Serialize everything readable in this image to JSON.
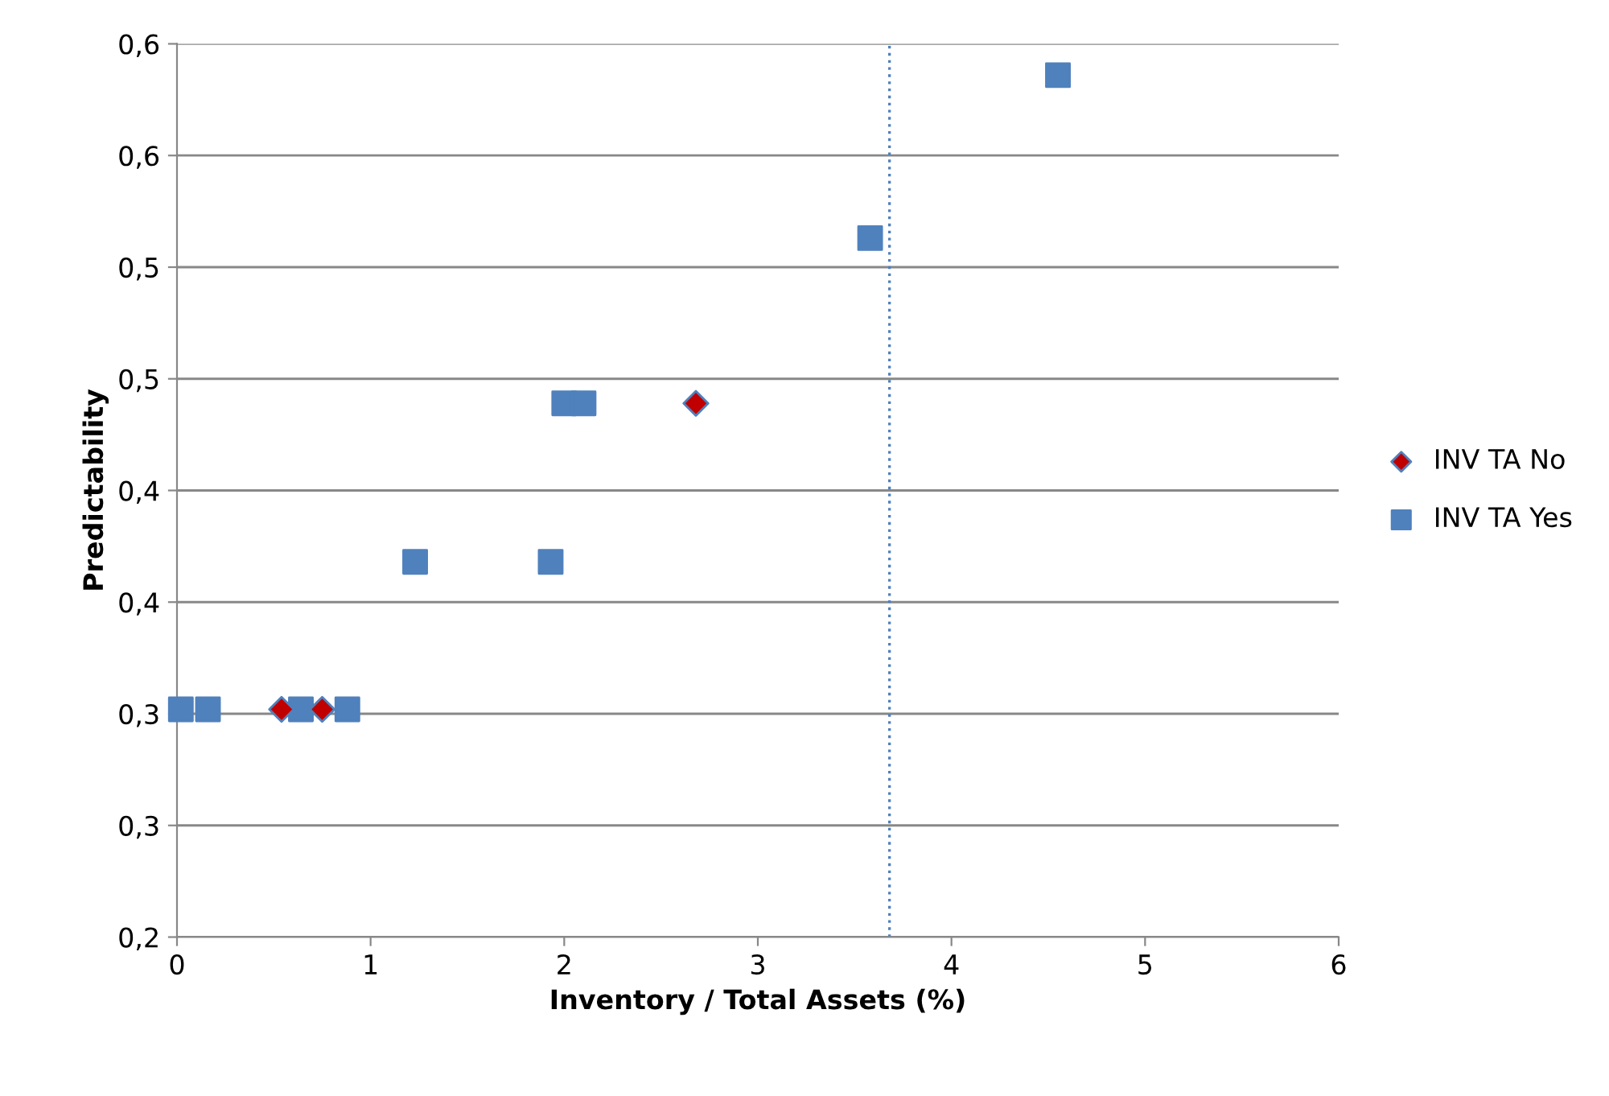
{
  "chart_data": {
    "type": "scatter",
    "xlabel": "Inventory / Total Assets (%)",
    "ylabel": "Predictability",
    "xlim": [
      0,
      6
    ],
    "xticks": [
      0,
      1,
      2,
      3,
      4,
      5,
      6
    ],
    "ylim": [
      0.2,
      0.6
    ],
    "yticks": [
      {
        "value": 0.2,
        "label": "0,2"
      },
      {
        "value": 0.25,
        "label": "0,3"
      },
      {
        "value": 0.3,
        "label": "0,3"
      },
      {
        "value": 0.35,
        "label": "0,4"
      },
      {
        "value": 0.4,
        "label": "0,4"
      },
      {
        "value": 0.45,
        "label": "0,5"
      },
      {
        "value": 0.5,
        "label": "0,5"
      },
      {
        "value": 0.55,
        "label": "0,6"
      },
      {
        "value": 0.6,
        "label": "0,6"
      }
    ],
    "grid": "y",
    "legend": "right",
    "series": [
      {
        "name": "INV TA No",
        "color": "#c00000",
        "marker": "diamond",
        "x": [
          2.68,
          0.54,
          0.75
        ],
        "values": [
          0.439,
          0.302,
          0.302
        ]
      },
      {
        "name": "INV TA Yes",
        "color": "#4f81bd",
        "marker": "square",
        "x": [
          4.55,
          3.58,
          2.0,
          2.1,
          1.23,
          1.93,
          0.88,
          0.02,
          0.16,
          0.64
        ],
        "values": [
          0.586,
          0.513,
          0.439,
          0.439,
          0.368,
          0.368,
          0.302,
          0.302,
          0.302,
          0.302
        ]
      }
    ],
    "ref_lines": [
      {
        "axis": "x",
        "value": 3.68,
        "color": "#4f81bd",
        "line_style": "dotted"
      }
    ]
  }
}
